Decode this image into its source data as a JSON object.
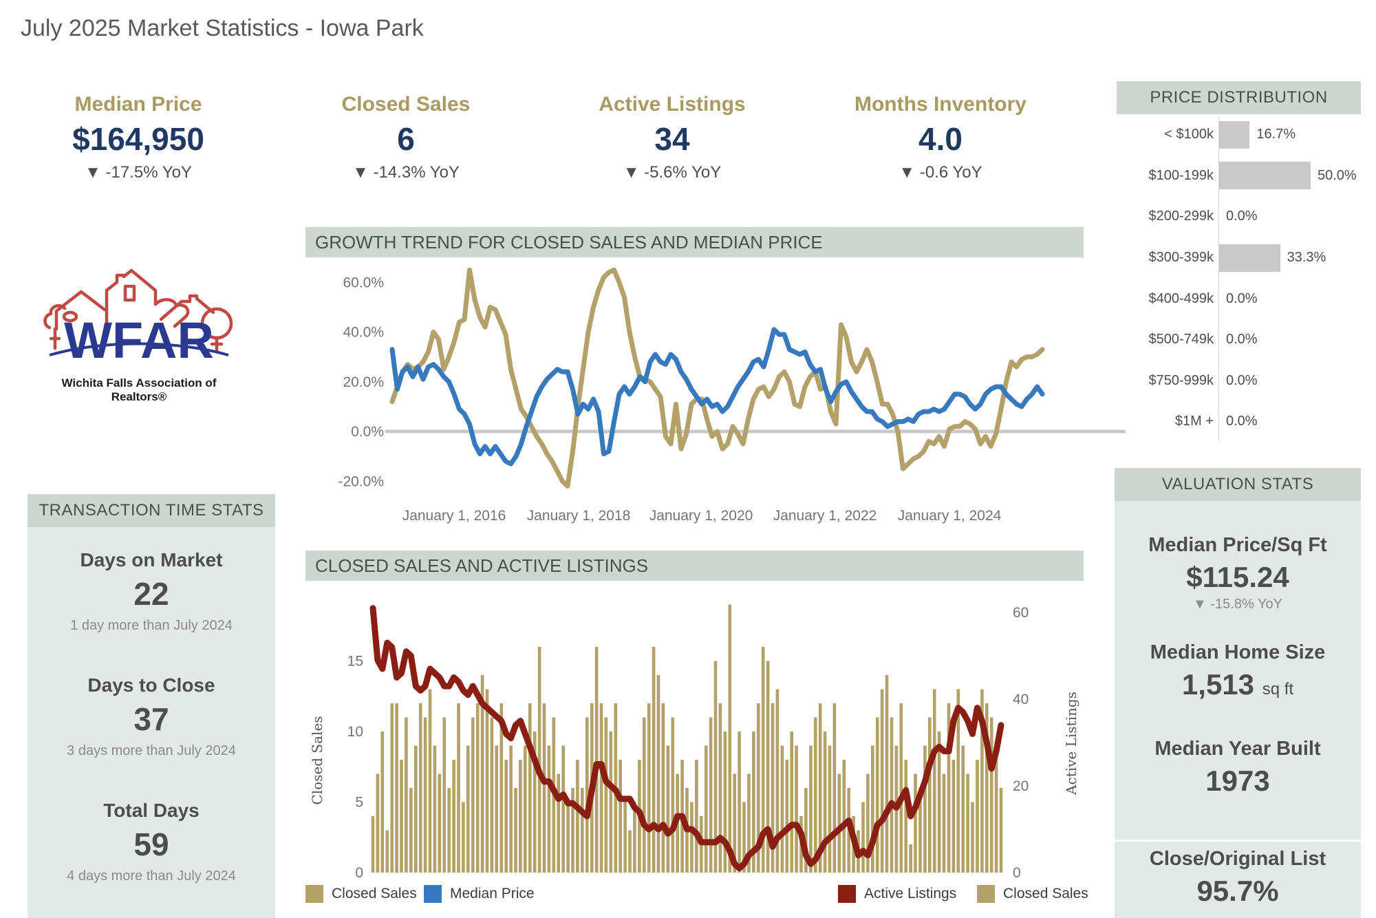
{
  "title": "July 2025 Market Statistics - Iowa Park",
  "kpis": [
    {
      "label": "Median Price",
      "value": "$164,950",
      "delta": "▼ -17.5% YoY"
    },
    {
      "label": "Closed Sales",
      "value": "6",
      "delta": "▼ -14.3% YoY"
    },
    {
      "label": "Active Listings",
      "value": "34",
      "delta": "▼ -5.6% YoY"
    },
    {
      "label": "Months Inventory",
      "value": "4.0",
      "delta": "▼ -0.6 YoY"
    }
  ],
  "logo": {
    "acronym": "WFAR",
    "caption": "Wichita Falls Association of Realtors®"
  },
  "price_distribution": {
    "header": "PRICE DISTRIBUTION",
    "rows": [
      {
        "label": "< $100k",
        "pct": 16.7,
        "text": "16.7%"
      },
      {
        "label": "$100-199k",
        "pct": 50.0,
        "text": "50.0%"
      },
      {
        "label": "$200-299k",
        "pct": 0.0,
        "text": "0.0%"
      },
      {
        "label": "$300-399k",
        "pct": 33.3,
        "text": "33.3%"
      },
      {
        "label": "$400-499k",
        "pct": 0.0,
        "text": "0.0%"
      },
      {
        "label": "$500-749k",
        "pct": 0.0,
        "text": "0.0%"
      },
      {
        "label": "$750-999k",
        "pct": 0.0,
        "text": "0.0%"
      },
      {
        "label": "$1M +",
        "pct": 0.0,
        "text": "0.0%"
      }
    ]
  },
  "transaction_stats": {
    "header": "TRANSACTION TIME STATS",
    "items": [
      {
        "label": "Days on Market",
        "value": "22",
        "note": "1 day more than July 2024"
      },
      {
        "label": "Days to Close",
        "value": "37",
        "note": "3 days more than July 2024"
      },
      {
        "label": "Total Days",
        "value": "59",
        "note": "4 days more than July 2024"
      }
    ]
  },
  "valuation_stats": {
    "header": "VALUATION STATS",
    "items": [
      {
        "label": "Median Price/Sq Ft",
        "value": "$115.24",
        "delta": "▼ -15.8% YoY"
      },
      {
        "label": "Median Home Size",
        "value": "1,513",
        "suffix": "sq ft"
      },
      {
        "label": "Median Year Built",
        "value": "1973"
      },
      {
        "label": "Close/Original List",
        "value": "95.7%"
      }
    ]
  },
  "colors": {
    "tan": "#b3a169",
    "blue": "#3779bf",
    "red": "#8a1e13",
    "navy": "#1f3864",
    "gold": "#a99a62",
    "header_bg": "#ccd7d2",
    "panel_bg": "#e3e9e6",
    "bar_gray": "#c9c9c9",
    "zero_line": "#c9c9c9",
    "tick_gray": "#737373"
  },
  "legends": {
    "bottom_left": [
      {
        "label": "Closed Sales",
        "color": "tan"
      },
      {
        "label": "Median Price",
        "color": "blue"
      }
    ],
    "bottom_right": [
      {
        "label": "Active Listings",
        "color": "red"
      },
      {
        "label": "Closed Sales",
        "color": "tan"
      }
    ]
  },
  "chart_data": [
    {
      "type": "line",
      "title": "GROWTH TREND FOR CLOSED SALES AND MEDIAN PRICE",
      "x_start": "2015-01",
      "frequency": "monthly",
      "x_tick_labels": [
        "January 1, 2016",
        "January 1, 2018",
        "January 1, 2020",
        "January 1, 2022",
        "January 1, 2024"
      ],
      "ylim": [
        -25,
        68
      ],
      "grid": "zero-line-only",
      "legend_position": "bottom-left",
      "yticks": [
        {
          "v": 60,
          "label": "60.0%"
        },
        {
          "v": 40,
          "label": "40.0%"
        },
        {
          "v": 20,
          "label": "20.0%"
        },
        {
          "v": 0,
          "label": "0.0%"
        },
        {
          "v": -20,
          "label": "-20.0%"
        }
      ],
      "series": [
        {
          "name": "Closed Sales",
          "color": "tan",
          "values": [
            12,
            18,
            24,
            27,
            25,
            26,
            28,
            32,
            40,
            37,
            25,
            30,
            36,
            44,
            45,
            65,
            53,
            46,
            42,
            50,
            49,
            44,
            39,
            25,
            17,
            9,
            6,
            2,
            -2,
            -5,
            -9,
            -12,
            -16,
            -20,
            -22,
            -8,
            10,
            25,
            40,
            50,
            57,
            62,
            64,
            65,
            60,
            54,
            40,
            30,
            22,
            21,
            20,
            17,
            14,
            -2,
            -5,
            11,
            -7,
            -1,
            11,
            13,
            13,
            5,
            -2,
            0,
            -7,
            -5,
            2,
            -1,
            -5,
            5,
            13,
            17,
            18,
            14,
            17,
            22,
            24,
            20,
            11,
            10,
            18,
            22,
            24,
            17,
            18,
            8,
            3,
            43,
            38,
            28,
            24,
            28,
            33,
            28,
            20,
            11,
            11,
            7,
            0,
            -15,
            -13,
            -11,
            -10,
            -8,
            -4,
            -5,
            -2,
            -6,
            1,
            2,
            2,
            4,
            3,
            1,
            -5,
            -2,
            -6,
            -1,
            9,
            20,
            28,
            26,
            29,
            30,
            30,
            31,
            33
          ]
        },
        {
          "name": "Median Price",
          "color": "blue",
          "values": [
            33,
            17,
            24,
            26,
            22,
            26,
            21,
            26,
            27,
            25,
            22,
            20,
            15,
            9,
            7,
            3,
            -5,
            -9,
            -6,
            -9,
            -6,
            -9,
            -12,
            -13,
            -10,
            -5,
            2,
            8,
            14,
            18,
            21,
            23,
            25,
            24,
            24,
            17,
            7,
            11,
            9,
            13,
            8,
            -9,
            -8,
            4,
            15,
            18,
            15,
            18,
            22,
            20,
            28,
            31,
            28,
            27,
            31,
            29,
            24,
            21,
            17,
            14,
            11,
            13,
            10,
            11,
            8,
            10,
            14,
            18,
            21,
            24,
            28,
            29,
            26,
            33,
            41,
            39,
            39,
            33,
            32,
            31,
            32,
            27,
            24,
            25,
            17,
            12,
            16,
            19,
            20,
            16,
            13,
            10,
            8,
            8,
            5,
            4,
            2,
            3,
            4,
            4,
            5,
            4,
            7,
            8,
            8,
            9,
            8,
            9,
            12,
            15,
            15,
            14,
            11,
            9,
            11,
            15,
            17,
            18,
            18,
            15,
            13,
            11,
            10,
            13,
            15,
            18,
            15
          ]
        }
      ]
    },
    {
      "type": "bar",
      "title": "CLOSED SALES AND ACTIVE LISTINGS",
      "x_start": "2014-07",
      "frequency": "monthly",
      "legend_position": "bottom",
      "left_axis": {
        "label": "Closed Sales",
        "ticks": [
          0,
          5,
          10,
          15
        ],
        "max": 19
      },
      "right_axis": {
        "label": "Active Listings",
        "ticks": [
          0,
          20,
          40,
          60
        ],
        "max": 65
      },
      "bars": {
        "name": "Closed Sales",
        "color": "tan",
        "values": [
          4,
          7,
          10,
          3,
          12,
          12,
          8,
          11,
          6,
          9,
          12,
          11,
          13,
          9,
          7,
          11,
          6,
          8,
          12,
          5,
          9,
          11,
          12,
          14,
          13,
          11,
          9,
          12,
          8,
          9,
          6,
          8,
          9,
          12,
          10,
          16,
          12,
          9,
          11,
          7,
          9,
          5,
          6,
          8,
          6,
          11,
          12,
          16,
          12,
          11,
          10,
          12,
          8,
          5,
          3,
          5,
          8,
          11,
          12,
          16,
          14,
          12,
          9,
          11,
          7,
          8,
          6,
          5,
          8,
          4,
          9,
          11,
          15,
          12,
          10,
          19,
          7,
          10,
          5,
          7,
          10,
          12,
          16,
          15,
          12,
          13,
          9,
          8,
          10,
          9,
          4,
          6,
          9,
          11,
          12,
          10,
          9,
          12,
          7,
          8,
          6,
          4,
          3,
          5,
          7,
          9,
          11,
          13,
          14,
          11,
          9,
          12,
          8,
          2,
          7,
          6,
          9,
          11,
          13,
          10,
          7,
          12,
          8,
          13,
          9,
          7,
          5,
          8,
          13,
          12,
          11,
          9,
          6
        ]
      },
      "line": {
        "name": "Active Listings",
        "color": "red",
        "values": [
          61,
          49,
          47,
          53,
          52,
          45,
          46,
          51,
          50,
          43,
          42,
          43,
          47,
          46,
          45,
          43,
          43,
          45,
          44,
          42,
          41,
          43,
          41,
          39,
          38,
          37,
          36,
          35,
          32,
          31,
          34,
          35,
          32,
          29,
          26,
          23,
          21,
          21,
          19,
          17,
          18,
          16,
          16,
          15,
          14,
          13,
          19,
          25,
          25,
          21,
          20,
          19,
          17,
          17,
          17,
          15,
          14,
          11,
          10,
          11,
          10,
          11,
          9,
          10,
          13,
          13,
          10,
          10,
          9,
          7,
          7,
          7,
          7,
          8,
          7,
          5,
          2,
          1,
          2,
          4,
          5,
          6,
          9,
          10,
          6,
          8,
          9,
          10,
          11,
          11,
          9,
          4,
          2,
          3,
          5,
          7,
          8,
          9,
          10,
          11,
          12,
          8,
          4,
          5,
          4,
          7,
          11,
          12,
          14,
          16,
          15,
          17,
          19,
          13,
          15,
          18,
          21,
          25,
          28,
          29,
          28,
          28,
          35,
          38,
          37,
          35,
          32,
          38,
          35,
          30,
          24,
          28,
          34
        ]
      }
    },
    {
      "type": "bar",
      "title": "PRICE DISTRIBUTION",
      "categories": [
        "< $100k",
        "$100-199k",
        "$200-299k",
        "$300-399k",
        "$400-499k",
        "$500-749k",
        "$750-999k",
        "$1M +"
      ],
      "values": [
        16.7,
        50.0,
        0.0,
        33.3,
        0.0,
        0.0,
        0.0,
        0.0
      ],
      "xlabel": "",
      "ylabel": "",
      "orientation": "horizontal"
    }
  ]
}
